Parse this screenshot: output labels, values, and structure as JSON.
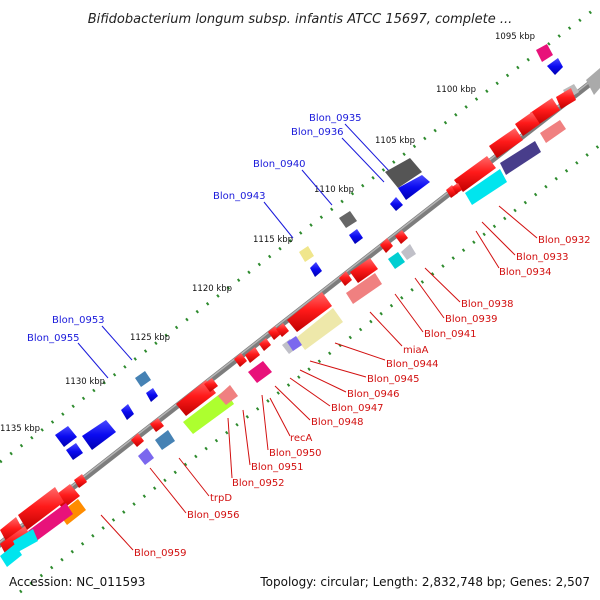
{
  "title": "Bifidobacterium longum subsp. infantis ATCC 15697, complete ...",
  "accession": "Accession: NC_011593",
  "topology": "Topology: circular; Length: 2,832,748 bp; Genes: 2,507",
  "scale_labels": [
    "1095 kbp",
    "1100 kbp",
    "1105 kbp",
    "1110 kbp",
    "1115 kbp",
    "1120 kbp",
    "1125 kbp",
    "1130 kbp",
    "1135 kbp"
  ],
  "forward_genes": [
    "Blon_0935",
    "Blon_0936",
    "Blon_0940",
    "Blon_0943",
    "Blon_0953",
    "Blon_0955"
  ],
  "reverse_genes": [
    "Blon_0932",
    "Blon_0933",
    "Blon_0934",
    "Blon_0938",
    "Blon_0939",
    "Blon_0941",
    "miaA",
    "Blon_0944",
    "Blon_0945",
    "Blon_0946",
    "Blon_0947",
    "Blon_0948",
    "recA",
    "Blon_0950",
    "Blon_0951",
    "Blon_0952",
    "trpD",
    "Blon_0956",
    "Blon_0959"
  ],
  "colors": {
    "reverse": "#ee1111",
    "forward": "#1a1adb",
    "backbone": "#888888",
    "dots": "#2e8b2e"
  }
}
